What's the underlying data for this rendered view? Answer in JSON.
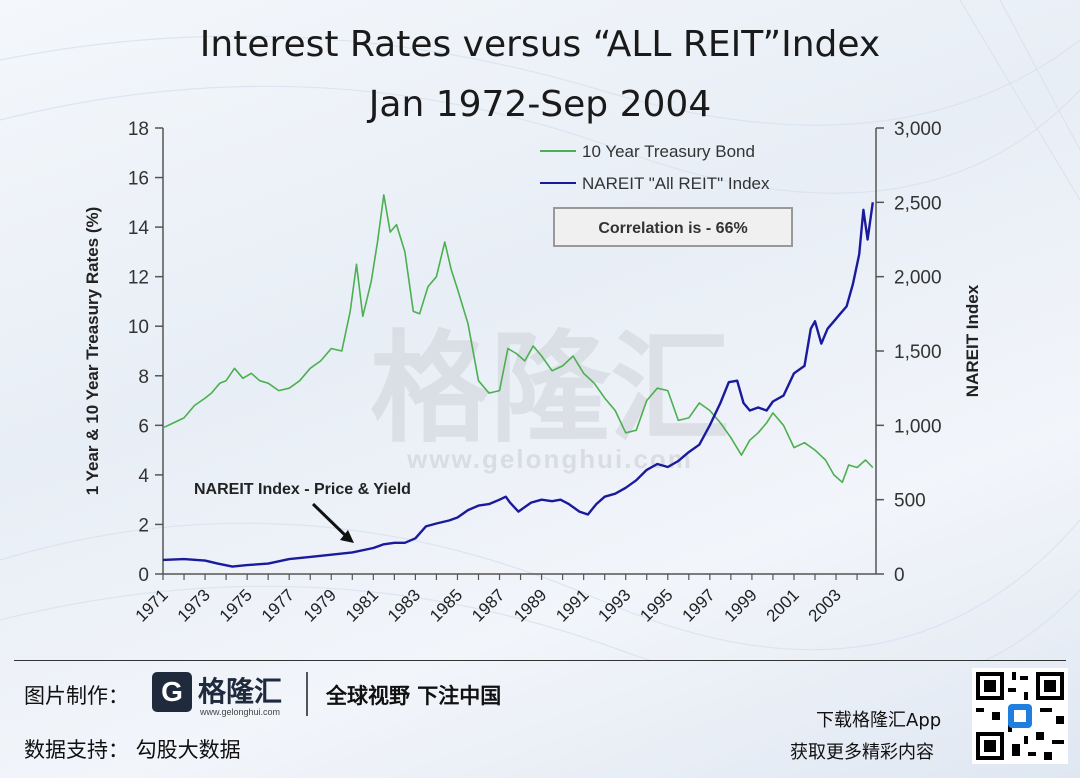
{
  "title": {
    "line1": "Interest Rates versus “ALL REIT”Index",
    "line2": "Jan 1972-Sep 2004"
  },
  "watermark": {
    "brand": "格隆汇",
    "url": "www.gelonghui.com"
  },
  "chart_data": {
    "type": "line",
    "title": "Interest Rates versus “ALL REIT”Index Jan 1972-Sep 2004",
    "ylabel": "1 Year & 10 Year Treasury Rates (%)",
    "y2label": "NAREIT Index",
    "ylim": [
      0,
      18
    ],
    "y2lim": [
      0,
      3000
    ],
    "yticks": [
      "0",
      "2",
      "4",
      "6",
      "8",
      "10",
      "12",
      "14",
      "16",
      "18"
    ],
    "y2ticks": [
      "0",
      "500",
      "1,000",
      "1,500",
      "2,000",
      "2,500",
      "3,000"
    ],
    "xticks": [
      "1971",
      "1973",
      "1975",
      "1977",
      "1979",
      "1981",
      "1983",
      "1985",
      "1987",
      "1989",
      "1991",
      "1993",
      "1995",
      "1997",
      "1999",
      "2001",
      "2003"
    ],
    "xlim": [
      1971,
      2004.9
    ],
    "legend": {
      "position": "top-right",
      "treasury": "10 Year Treasury Bond",
      "nareit": "NAREIT \"All REIT\" Index"
    },
    "correlation_label": "Correlation is - 66%",
    "annotation": "NAREIT Index - Price & Yield",
    "colors": {
      "treasury": "#4caf50",
      "nareit": "#1a1a9c",
      "axis": "#555555"
    },
    "series": [
      {
        "name": "10 Year Treasury Bond",
        "axis": "left",
        "x": [
          1971.0,
          1971.5,
          1972.0,
          1972.5,
          1973.0,
          1973.3,
          1973.7,
          1974.0,
          1974.4,
          1974.8,
          1975.2,
          1975.6,
          1976.0,
          1976.5,
          1977.0,
          1977.5,
          1978.0,
          1978.5,
          1979.0,
          1979.5,
          1979.9,
          1980.2,
          1980.5,
          1980.9,
          1981.2,
          1981.5,
          1981.8,
          1982.1,
          1982.5,
          1982.9,
          1983.2,
          1983.6,
          1984.0,
          1984.4,
          1984.7,
          1985.0,
          1985.5,
          1986.0,
          1986.5,
          1987.0,
          1987.4,
          1987.8,
          1988.2,
          1988.6,
          1989.0,
          1989.5,
          1990.0,
          1990.5,
          1991.0,
          1991.5,
          1992.0,
          1992.5,
          1993.0,
          1993.5,
          1994.0,
          1994.5,
          1995.0,
          1995.5,
          1996.0,
          1996.5,
          1997.0,
          1997.5,
          1998.0,
          1998.5,
          1998.9,
          1999.3,
          1999.7,
          2000.0,
          2000.5,
          2001.0,
          2001.5,
          2002.0,
          2002.5,
          2002.9,
          2003.3,
          2003.6,
          2004.0,
          2004.4,
          2004.75
        ],
        "values": [
          5.9,
          6.1,
          6.3,
          6.8,
          7.1,
          7.3,
          7.7,
          7.8,
          8.3,
          7.9,
          8.1,
          7.8,
          7.7,
          7.4,
          7.5,
          7.8,
          8.3,
          8.6,
          9.1,
          9.0,
          10.6,
          12.5,
          10.4,
          11.8,
          13.4,
          15.3,
          13.8,
          14.1,
          13.0,
          10.6,
          10.5,
          11.6,
          12.0,
          13.4,
          12.3,
          11.5,
          10.1,
          7.8,
          7.3,
          7.4,
          9.1,
          8.9,
          8.6,
          9.2,
          8.8,
          8.2,
          8.4,
          8.8,
          8.1,
          7.7,
          7.1,
          6.6,
          5.7,
          5.8,
          7.0,
          7.5,
          7.4,
          6.2,
          6.3,
          6.9,
          6.6,
          6.1,
          5.5,
          4.8,
          5.4,
          5.7,
          6.1,
          6.5,
          6.0,
          5.1,
          5.3,
          5.0,
          4.6,
          4.0,
          3.7,
          4.4,
          4.3,
          4.6,
          4.3
        ]
      },
      {
        "name": "NAREIT \"All REIT\" Index",
        "axis": "right",
        "x": [
          1971.0,
          1972.0,
          1973.0,
          1973.6,
          1974.3,
          1975.0,
          1976.0,
          1977.0,
          1978.0,
          1979.0,
          1980.0,
          1981.0,
          1981.5,
          1982.0,
          1982.5,
          1983.0,
          1983.5,
          1984.0,
          1984.6,
          1985.0,
          1985.5,
          1986.0,
          1986.5,
          1987.0,
          1987.3,
          1987.5,
          1987.9,
          1988.5,
          1989.0,
          1989.5,
          1989.9,
          1990.3,
          1990.8,
          1991.2,
          1991.6,
          1992.0,
          1992.5,
          1993.0,
          1993.5,
          1994.0,
          1994.5,
          1995.0,
          1995.5,
          1996.0,
          1996.5,
          1997.0,
          1997.5,
          1997.9,
          1998.3,
          1998.6,
          1998.9,
          1999.3,
          1999.7,
          2000.0,
          2000.5,
          2001.0,
          2001.5,
          2001.8,
          2002.0,
          2002.3,
          2002.6,
          2002.9,
          2003.2,
          2003.5,
          2003.8,
          2004.1,
          2004.3,
          2004.5,
          2004.75
        ],
        "values": [
          95,
          100,
          90,
          70,
          50,
          60,
          70,
          100,
          115,
          130,
          145,
          175,
          200,
          210,
          210,
          240,
          320,
          340,
          360,
          380,
          430,
          460,
          470,
          500,
          520,
          480,
          420,
          480,
          500,
          490,
          500,
          470,
          420,
          400,
          470,
          520,
          540,
          580,
          630,
          700,
          740,
          720,
          760,
          820,
          870,
          1000,
          1150,
          1290,
          1300,
          1150,
          1100,
          1120,
          1100,
          1160,
          1200,
          1350,
          1400,
          1650,
          1700,
          1550,
          1650,
          1700,
          1750,
          1800,
          1950,
          2150,
          2450,
          2250,
          2500
        ]
      }
    ]
  },
  "footer": {
    "made_label": "图片制作：",
    "logo_glyph": "G",
    "logo_name": "格隆汇",
    "logo_url": "www.gelonghui.com",
    "slogan": "全球视野 下注中国",
    "support": "数据支持：  勾股大数据",
    "app_line1": "下载格隆汇App",
    "app_line2": "获取更多精彩内容"
  }
}
